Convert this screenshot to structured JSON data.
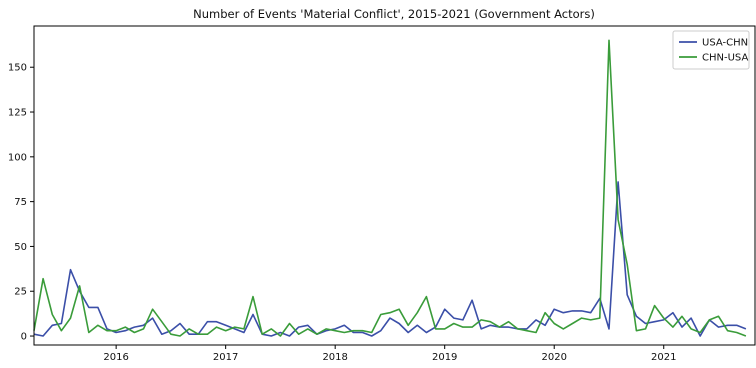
{
  "chart_data": {
    "type": "line",
    "title": "Number of Events 'Material Conflict', 2015-2021 (Government Actors)",
    "xlabel": "",
    "ylabel": "",
    "x_start": "2015-04",
    "x_end": "2021-11",
    "xlim": [
      "2015-04",
      "2021-11"
    ],
    "x_ticks": [
      {
        "date": "2016-01",
        "label": "2016"
      },
      {
        "date": "2017-01",
        "label": "2017"
      },
      {
        "date": "2018-01",
        "label": "2018"
      },
      {
        "date": "2019-01",
        "label": "2019"
      },
      {
        "date": "2020-01",
        "label": "2020"
      },
      {
        "date": "2021-01",
        "label": "2021"
      }
    ],
    "ylim": [
      -5,
      173
    ],
    "y_ticks": [
      0,
      25,
      50,
      75,
      100,
      125,
      150
    ],
    "grid": false,
    "legend": "top-right",
    "series": [
      {
        "name": "USA-CHN",
        "color": "#3b4fa8",
        "values": [
          1,
          0,
          6,
          7,
          37,
          25,
          16,
          16,
          4,
          2,
          3,
          5,
          6,
          10,
          1,
          3,
          7,
          1,
          1,
          8,
          8,
          6,
          4,
          2,
          12,
          1,
          0,
          2,
          0,
          5,
          6,
          1,
          3,
          4,
          6,
          2,
          2,
          0,
          3,
          10,
          7,
          2,
          6,
          2,
          5,
          15,
          10,
          9,
          20,
          4,
          6,
          5,
          5,
          4,
          4,
          9,
          6,
          15,
          13,
          14,
          14,
          13,
          21,
          4,
          86,
          23,
          11,
          7,
          8,
          9,
          13,
          5,
          10,
          0,
          9,
          5,
          6,
          6,
          4
        ]
      },
      {
        "name": "CHN-USA",
        "color": "#3a9c3a",
        "values": [
          3,
          32,
          12,
          3,
          10,
          28,
          2,
          6,
          3,
          3,
          5,
          2,
          4,
          15,
          8,
          1,
          0,
          4,
          1,
          1,
          5,
          3,
          5,
          4,
          22,
          1,
          4,
          0,
          7,
          1,
          4,
          1,
          4,
          3,
          2,
          3,
          3,
          2,
          12,
          13,
          15,
          6,
          13,
          22,
          4,
          4,
          7,
          5,
          5,
          9,
          8,
          5,
          8,
          4,
          3,
          2,
          13,
          7,
          4,
          7,
          10,
          9,
          10,
          165,
          65,
          40,
          3,
          4,
          17,
          10,
          5,
          11,
          4,
          2,
          9,
          11,
          3,
          2,
          0
        ]
      }
    ]
  }
}
